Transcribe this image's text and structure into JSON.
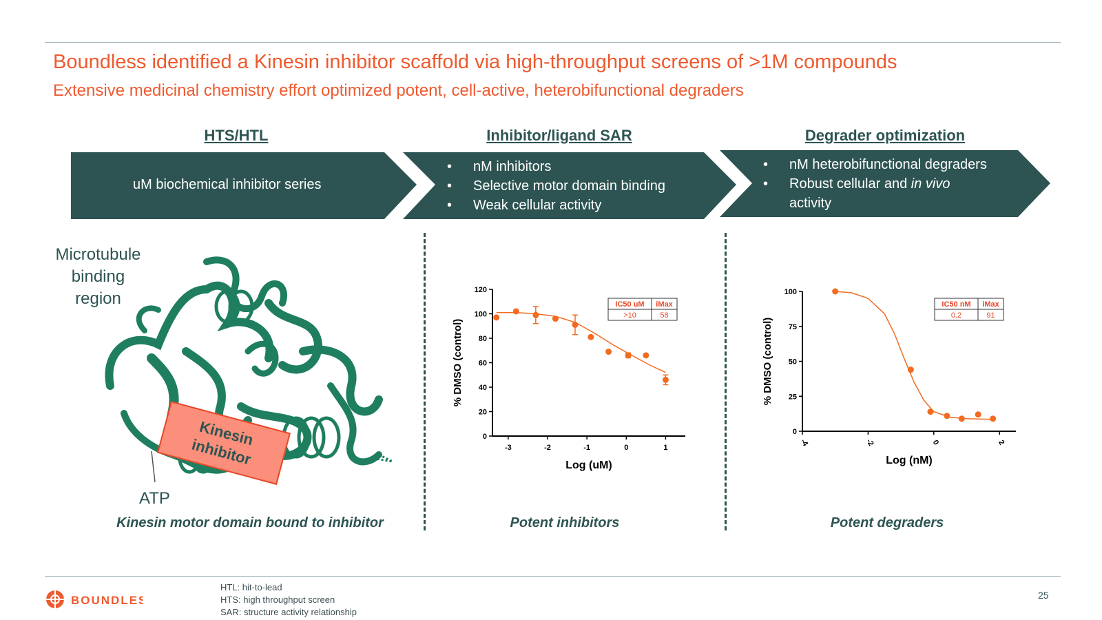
{
  "slide": {
    "title": "Boundless identified a Kinesin inhibitor scaffold via high-throughput screens of >1M compounds",
    "subtitle": "Extensive medicinal chemistry effort optimized potent, cell-active, heterobifunctional degraders",
    "page_number": "25"
  },
  "stages": [
    {
      "heading": "HTS/HTL",
      "items": [
        "uM biochemical inhibitor series"
      ]
    },
    {
      "heading": "Inhibitor/ligand SAR",
      "items": [
        "nM inhibitors",
        "Selective motor domain binding",
        "Weak cellular activity"
      ]
    },
    {
      "heading": "Degrader optimization",
      "items": [
        "nM heterobifunctional degraders",
        "Robust cellular and ",
        "activity"
      ],
      "italic_fragment": "in vivo"
    }
  ],
  "protein_panel": {
    "microtubule_label": [
      "Microtubule",
      "binding",
      "region"
    ],
    "inhibitor_label": [
      "Kinesin",
      "inhibitor"
    ],
    "atp_label": "ATP",
    "caption": "Kinesin motor domain bound to inhibitor"
  },
  "captions": {
    "inhibitors": "Potent inhibitors",
    "degraders": "Potent degraders"
  },
  "footnotes": [
    "HTL: hit-to-lead",
    "HTS: high throughput screen",
    "SAR: structure activity relationship"
  ],
  "logo": {
    "text": "BOUNDLESS"
  },
  "colors": {
    "accent": "#ee5a2f",
    "dark_teal": "#2d5452",
    "protein": "#1e7e5f",
    "inhibitor_fill": "#fb8f7b"
  },
  "chart_data": [
    {
      "type": "scatter",
      "title": "",
      "xlabel": "Log (uM)",
      "ylabel": "% DMSO (control)",
      "xlim": [
        -3.4,
        1.5
      ],
      "ylim": [
        0,
        120
      ],
      "xticks": [
        "-3",
        "-2",
        "-1",
        "0",
        "1"
      ],
      "yticks": [
        "0",
        "20",
        "40",
        "60",
        "80",
        "100",
        "120"
      ],
      "points": [
        {
          "x": -3.3,
          "y": 97
        },
        {
          "x": -2.8,
          "y": 102
        },
        {
          "x": -2.3,
          "y": 99,
          "err": 7
        },
        {
          "x": -1.8,
          "y": 96
        },
        {
          "x": -1.3,
          "y": 91,
          "err": 8
        },
        {
          "x": -0.9,
          "y": 81
        },
        {
          "x": -0.45,
          "y": 69
        },
        {
          "x": 0.05,
          "y": 66,
          "err": 2
        },
        {
          "x": 0.5,
          "y": 66
        },
        {
          "x": 1.0,
          "y": 46,
          "err": 4
        }
      ],
      "fit": [
        [
          -3.3,
          101
        ],
        [
          -2.8,
          101
        ],
        [
          -2.3,
          100
        ],
        [
          -1.8,
          98
        ],
        [
          -1.3,
          93
        ],
        [
          -0.8,
          84
        ],
        [
          -0.3,
          74
        ],
        [
          0.2,
          65
        ],
        [
          0.6,
          58
        ],
        [
          1.0,
          52
        ]
      ],
      "table": {
        "headers": [
          "IC50 uM",
          "iMax"
        ],
        "values": [
          ">10",
          "58"
        ]
      }
    },
    {
      "type": "scatter",
      "title": "",
      "xlabel": "Log (nM)",
      "ylabel": "% DMSO (control)",
      "xlim": [
        -4,
        2.5
      ],
      "ylim": [
        0,
        100
      ],
      "xticks": [
        "-4",
        "-2",
        "0",
        "2"
      ],
      "yticks": [
        "0",
        "25",
        "50",
        "75",
        "100"
      ],
      "points": [
        {
          "x": -3.0,
          "y": 100
        },
        {
          "x": -0.7,
          "y": 44
        },
        {
          "x": -0.1,
          "y": 14
        },
        {
          "x": 0.4,
          "y": 11
        },
        {
          "x": 0.85,
          "y": 9
        },
        {
          "x": 1.35,
          "y": 12
        },
        {
          "x": 1.8,
          "y": 9
        }
      ],
      "fit": [
        [
          -3.0,
          100
        ],
        [
          -2.5,
          99
        ],
        [
          -2.0,
          95
        ],
        [
          -1.5,
          84
        ],
        [
          -1.2,
          70
        ],
        [
          -0.9,
          52
        ],
        [
          -0.6,
          35
        ],
        [
          -0.3,
          22
        ],
        [
          0.0,
          14
        ],
        [
          0.5,
          10
        ],
        [
          1.0,
          9
        ],
        [
          1.8,
          8.5
        ]
      ],
      "table": {
        "headers": [
          "IC50 nM",
          "iMax"
        ],
        "values": [
          "0.2",
          "91"
        ]
      }
    }
  ]
}
